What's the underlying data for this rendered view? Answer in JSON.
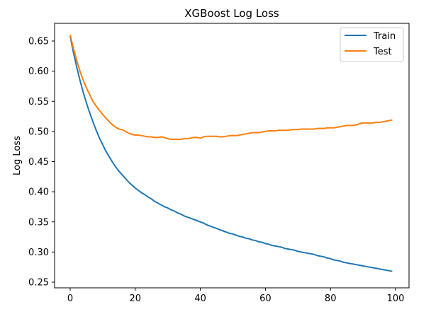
{
  "chart_data": {
    "type": "line",
    "title": "XGBoost Log Loss",
    "xlabel": "",
    "ylabel": "Log Loss",
    "xlim": [
      -5,
      104
    ],
    "ylim": [
      0.24,
      0.68
    ],
    "xticks": [
      0,
      20,
      40,
      60,
      80,
      100
    ],
    "xtick_labels": [
      "0",
      "20",
      "40",
      "60",
      "80",
      "100"
    ],
    "yticks": [
      0.25,
      0.3,
      0.35,
      0.4,
      0.45,
      0.5,
      0.55,
      0.6,
      0.65
    ],
    "ytick_labels": [
      "0.25",
      "0.30",
      "0.35",
      "0.40",
      "0.45",
      "0.50",
      "0.55",
      "0.60",
      "0.65"
    ],
    "grid": false,
    "legend_position": "upper right",
    "x": [
      0,
      1,
      2,
      3,
      4,
      5,
      6,
      7,
      8,
      9,
      10,
      11,
      12,
      13,
      14,
      15,
      16,
      17,
      18,
      19,
      20,
      21,
      22,
      23,
      24,
      25,
      26,
      27,
      28,
      29,
      30,
      31,
      32,
      33,
      34,
      35,
      36,
      37,
      38,
      39,
      40,
      41,
      42,
      43,
      44,
      45,
      46,
      47,
      48,
      49,
      50,
      51,
      52,
      53,
      54,
      55,
      56,
      57,
      58,
      59,
      60,
      61,
      62,
      63,
      64,
      65,
      66,
      67,
      68,
      69,
      70,
      71,
      72,
      73,
      74,
      75,
      76,
      77,
      78,
      79,
      80,
      81,
      82,
      83,
      84,
      85,
      86,
      87,
      88,
      89,
      90,
      91,
      92,
      93,
      94,
      95,
      96,
      97,
      98,
      99
    ],
    "series": [
      {
        "name": "Train",
        "color": "#1f77b4",
        "values": [
          0.658,
          0.631,
          0.607,
          0.585,
          0.565,
          0.547,
          0.531,
          0.516,
          0.502,
          0.489,
          0.478,
          0.467,
          0.458,
          0.449,
          0.441,
          0.434,
          0.428,
          0.422,
          0.416,
          0.411,
          0.406,
          0.402,
          0.398,
          0.395,
          0.391,
          0.388,
          0.384,
          0.381,
          0.378,
          0.375,
          0.373,
          0.37,
          0.368,
          0.365,
          0.363,
          0.36,
          0.358,
          0.356,
          0.354,
          0.352,
          0.35,
          0.348,
          0.345,
          0.343,
          0.341,
          0.339,
          0.337,
          0.335,
          0.333,
          0.331,
          0.33,
          0.328,
          0.326,
          0.325,
          0.323,
          0.322,
          0.32,
          0.319,
          0.317,
          0.316,
          0.314,
          0.313,
          0.311,
          0.31,
          0.309,
          0.308,
          0.306,
          0.305,
          0.304,
          0.303,
          0.301,
          0.3,
          0.299,
          0.298,
          0.297,
          0.296,
          0.294,
          0.293,
          0.292,
          0.29,
          0.289,
          0.287,
          0.286,
          0.285,
          0.283,
          0.282,
          0.281,
          0.28,
          0.279,
          0.278,
          0.277,
          0.276,
          0.275,
          0.274,
          0.273,
          0.272,
          0.271,
          0.27,
          0.269,
          0.268
        ]
      },
      {
        "name": "Test",
        "color": "#ff7f0e",
        "values": [
          0.66,
          0.638,
          0.618,
          0.6,
          0.585,
          0.572,
          0.561,
          0.55,
          0.542,
          0.535,
          0.528,
          0.522,
          0.516,
          0.511,
          0.507,
          0.504,
          0.503,
          0.5,
          0.497,
          0.495,
          0.494,
          0.494,
          0.493,
          0.492,
          0.491,
          0.491,
          0.49,
          0.49,
          0.491,
          0.49,
          0.488,
          0.487,
          0.487,
          0.487,
          0.487,
          0.488,
          0.488,
          0.489,
          0.49,
          0.49,
          0.489,
          0.491,
          0.492,
          0.492,
          0.492,
          0.492,
          0.491,
          0.491,
          0.492,
          0.493,
          0.493,
          0.493,
          0.494,
          0.495,
          0.496,
          0.497,
          0.498,
          0.498,
          0.498,
          0.499,
          0.5,
          0.501,
          0.501,
          0.501,
          0.502,
          0.502,
          0.502,
          0.502,
          0.503,
          0.503,
          0.503,
          0.504,
          0.504,
          0.504,
          0.504,
          0.504,
          0.505,
          0.505,
          0.505,
          0.506,
          0.506,
          0.506,
          0.507,
          0.508,
          0.509,
          0.51,
          0.51,
          0.51,
          0.511,
          0.513,
          0.514,
          0.514,
          0.514,
          0.514,
          0.515,
          0.515,
          0.516,
          0.517,
          0.518,
          0.519
        ]
      }
    ]
  }
}
